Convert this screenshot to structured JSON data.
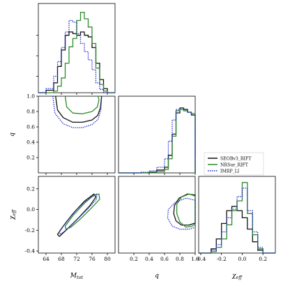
{
  "figure": {
    "background": "#ffffff"
  },
  "colors": {
    "SEOBv3_RIFT": "#111111",
    "NRSur_RIFT": "#2e8b2e",
    "IMRP_LI": "#2323d0"
  },
  "chart_data": {
    "type": "corner",
    "parameters": [
      "M_tot",
      "q",
      "chi_eff"
    ],
    "axis_labels": {
      "M_tot": {
        "base": "M",
        "sub": "tot"
      },
      "q": {
        "base": "q",
        "sub": ""
      },
      "chi_eff": {
        "base": "χ",
        "sub": "eff"
      }
    },
    "ranges": {
      "M_tot": [
        62,
        82
      ],
      "q": [
        0.0,
        1.0
      ],
      "chi_eff": [
        -0.42,
        0.32
      ]
    },
    "ticks": {
      "M_tot": [
        64,
        68,
        72,
        76,
        80
      ],
      "q": [
        0.2,
        0.4,
        0.6,
        0.8,
        1.0
      ],
      "chi_eff": [
        -0.4,
        -0.2,
        0.0,
        0.2
      ]
    },
    "series": [
      {
        "name": "SEOBv3_RIFT",
        "color": "#111111",
        "style": "solid"
      },
      {
        "name": "NRSur_RIFT",
        "color": "#2e8b2e",
        "style": "solid"
      },
      {
        "name": "IMRP_LI",
        "color": "#2323d0",
        "style": "dotted"
      }
    ],
    "histograms": {
      "M_tot": {
        "edges": [
          62,
          64,
          66,
          67,
          68,
          69,
          70,
          71,
          72,
          73,
          74,
          75,
          76,
          77,
          78,
          79,
          80,
          81,
          82
        ],
        "SEOBv3_RIFT": [
          0,
          0.03,
          0.12,
          0.32,
          0.52,
          0.7,
          0.74,
          0.72,
          0.7,
          0.74,
          0.7,
          0.68,
          0.55,
          0.36,
          0.16,
          0.05,
          0,
          0
        ],
        "NRSur_RIFT": [
          0,
          0,
          0.02,
          0.08,
          0.18,
          0.36,
          0.56,
          0.66,
          0.88,
          0.98,
          0.9,
          0.8,
          0.6,
          0.3,
          0.1,
          0.02,
          0,
          0
        ],
        "IMRP_LI": [
          0,
          0.05,
          0.2,
          0.38,
          0.55,
          0.74,
          0.88,
          0.86,
          0.72,
          0.6,
          0.5,
          0.4,
          0.28,
          0.12,
          0.04,
          0,
          0,
          0
        ]
      },
      "q": {
        "edges": [
          0.0,
          0.3,
          0.4,
          0.5,
          0.6,
          0.65,
          0.7,
          0.75,
          0.8,
          0.85,
          0.9,
          0.95,
          1.0
        ],
        "SEOBv3_RIFT": [
          0,
          0,
          0.01,
          0.04,
          0.08,
          0.25,
          0.55,
          0.85,
          0.92,
          0.9,
          0.86,
          0.82
        ],
        "NRSur_RIFT": [
          0,
          0,
          0,
          0.02,
          0.05,
          0.2,
          0.52,
          0.88,
          0.9,
          0.88,
          0.86,
          0.84
        ],
        "IMRP_LI": [
          0,
          0.01,
          0.03,
          0.08,
          0.2,
          0.45,
          0.75,
          0.9,
          0.92,
          0.9,
          0.86,
          0.82
        ]
      },
      "chi_eff": {
        "edges": [
          -0.42,
          -0.3,
          -0.25,
          -0.2,
          -0.15,
          -0.1,
          -0.05,
          0.0,
          0.05,
          0.1,
          0.15,
          0.2,
          0.32
        ],
        "SEOBv3_RIFT": [
          0,
          0.06,
          0.2,
          0.42,
          0.6,
          0.66,
          0.6,
          0.5,
          0.34,
          0.16,
          0.04,
          0
        ],
        "NRSur_RIFT": [
          0,
          0.02,
          0.08,
          0.2,
          0.4,
          0.6,
          0.74,
          1.0,
          0.56,
          0.26,
          0.06,
          0
        ],
        "IMRP_LI": [
          0,
          0.04,
          0.12,
          0.3,
          0.5,
          0.62,
          0.8,
          0.92,
          0.6,
          0.3,
          0.08,
          0
        ]
      }
    },
    "contours": {
      "M_tot-q": {
        "SEOBv3_RIFT": [
          [
            66.5,
            1.0
          ],
          [
            67.0,
            0.82
          ],
          [
            68.5,
            0.72
          ],
          [
            71,
            0.66
          ],
          [
            73.5,
            0.66
          ],
          [
            76,
            0.69
          ],
          [
            77.5,
            0.75
          ],
          [
            78.2,
            0.85
          ],
          [
            78.5,
            1.0
          ]
        ],
        "NRSur_RIFT": [
          [
            69.0,
            1.0
          ],
          [
            69.4,
            0.86
          ],
          [
            71,
            0.78
          ],
          [
            73.5,
            0.77
          ],
          [
            76,
            0.8
          ],
          [
            77.4,
            0.86
          ],
          [
            77.8,
            0.95
          ],
          [
            77.6,
            1.0
          ]
        ],
        "IMRP_LI": [
          [
            65.8,
            1.0
          ],
          [
            66.3,
            0.78
          ],
          [
            68.5,
            0.64
          ],
          [
            71,
            0.59
          ],
          [
            73.5,
            0.59
          ],
          [
            76,
            0.63
          ],
          [
            77.6,
            0.7
          ],
          [
            78.3,
            0.82
          ],
          [
            78.5,
            1.0
          ]
        ]
      },
      "M_tot-chi_eff": {
        "SEOBv3_RIFT": [
          [
            67.0,
            -0.24
          ],
          [
            68.5,
            -0.16
          ],
          [
            71,
            -0.04
          ],
          [
            74,
            0.08
          ],
          [
            76.5,
            0.15
          ],
          [
            77.0,
            0.12
          ],
          [
            75.5,
            0.04
          ],
          [
            72.5,
            -0.08
          ],
          [
            69.5,
            -0.19
          ],
          [
            67.5,
            -0.26
          ]
        ],
        "NRSur_RIFT": [
          [
            69.0,
            -0.16
          ],
          [
            71,
            -0.06
          ],
          [
            74,
            0.06
          ],
          [
            76.5,
            0.14
          ],
          [
            77.8,
            0.15
          ],
          [
            78.0,
            0.1
          ],
          [
            76,
            0.02
          ],
          [
            73,
            -0.09
          ],
          [
            70.5,
            -0.17
          ],
          [
            69.2,
            -0.19
          ]
        ],
        "IMRP_LI": [
          [
            67.5,
            -0.21
          ],
          [
            69.5,
            -0.11
          ],
          [
            72,
            0.0
          ],
          [
            75,
            0.1
          ],
          [
            77.2,
            0.15
          ],
          [
            77.2,
            0.1
          ],
          [
            75,
            0.01
          ],
          [
            72,
            -0.1
          ],
          [
            69.5,
            -0.19
          ],
          [
            67.7,
            -0.24
          ]
        ]
      },
      "q-chi_eff": {
        "SEOBv3_RIFT": [
          [
            1.0,
            0.14
          ],
          [
            0.9,
            0.15
          ],
          [
            0.79,
            0.11
          ],
          [
            0.73,
            0.04
          ],
          [
            0.72,
            -0.04
          ],
          [
            0.75,
            -0.11
          ],
          [
            0.82,
            -0.15
          ],
          [
            0.92,
            -0.15
          ],
          [
            1.0,
            -0.13
          ]
        ],
        "NRSur_RIFT": [
          [
            1.0,
            0.13
          ],
          [
            0.92,
            0.15
          ],
          [
            0.82,
            0.12
          ],
          [
            0.76,
            0.05
          ],
          [
            0.76,
            -0.04
          ],
          [
            0.8,
            -0.12
          ],
          [
            0.88,
            -0.17
          ],
          [
            0.96,
            -0.16
          ],
          [
            1.0,
            -0.14
          ]
        ],
        "IMRP_LI": [
          [
            1.0,
            0.09
          ],
          [
            0.88,
            0.11
          ],
          [
            0.74,
            0.07
          ],
          [
            0.65,
            0.0
          ],
          [
            0.64,
            -0.08
          ],
          [
            0.7,
            -0.16
          ],
          [
            0.8,
            -0.19
          ],
          [
            0.92,
            -0.19
          ],
          [
            1.0,
            -0.17
          ]
        ]
      }
    },
    "legend": {
      "placement": "right of q histogram",
      "entries": [
        "SEOBv3_RIFT",
        "NRSur_RIFT",
        "IMRP_LI"
      ]
    }
  }
}
